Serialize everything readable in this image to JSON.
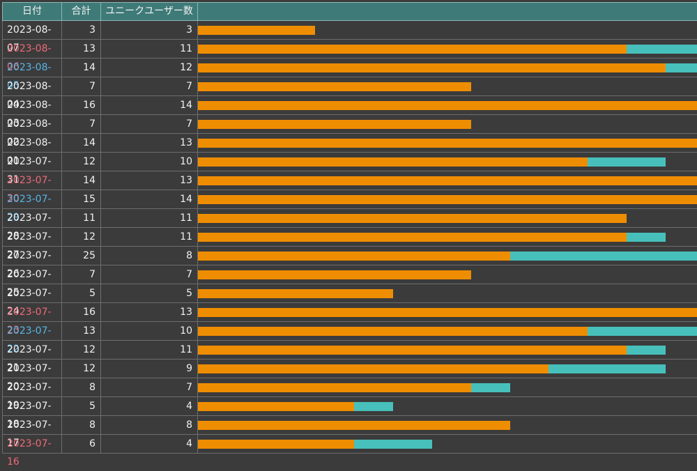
{
  "colors": {
    "header_bg": "#3e7a78",
    "row_bg": "#3b3b3b",
    "unique_bar": "#ef8d00",
    "total_bar": "#47c0bb",
    "sunday_text": "#ee6a78",
    "saturday_text": "#56b6e8"
  },
  "header": {
    "date": "日付",
    "total": "合計",
    "unique": "ユニークユーザー数"
  },
  "chart_data": {
    "type": "table",
    "bar_full_scale": 12.8,
    "columns": [
      "日付",
      "合計",
      "ユニークユーザー数"
    ],
    "rows": [
      {
        "date": "2023-08-07",
        "total": 3,
        "unique": 3,
        "day": "weekday"
      },
      {
        "date": "2023-08-06",
        "total": 13,
        "unique": 11,
        "day": "sun"
      },
      {
        "date": "2023-08-05",
        "total": 14,
        "unique": 12,
        "day": "sat"
      },
      {
        "date": "2023-08-04",
        "total": 7,
        "unique": 7,
        "day": "weekday"
      },
      {
        "date": "2023-08-03",
        "total": 16,
        "unique": 14,
        "day": "weekday"
      },
      {
        "date": "2023-08-02",
        "total": 7,
        "unique": 7,
        "day": "weekday"
      },
      {
        "date": "2023-08-01",
        "total": 14,
        "unique": 13,
        "day": "weekday"
      },
      {
        "date": "2023-07-31",
        "total": 12,
        "unique": 10,
        "day": "weekday"
      },
      {
        "date": "2023-07-30",
        "total": 14,
        "unique": 13,
        "day": "sun"
      },
      {
        "date": "2023-07-29",
        "total": 15,
        "unique": 14,
        "day": "sat"
      },
      {
        "date": "2023-07-28",
        "total": 11,
        "unique": 11,
        "day": "weekday"
      },
      {
        "date": "2023-07-27",
        "total": 12,
        "unique": 11,
        "day": "weekday"
      },
      {
        "date": "2023-07-26",
        "total": 25,
        "unique": 8,
        "day": "weekday"
      },
      {
        "date": "2023-07-25",
        "total": 7,
        "unique": 7,
        "day": "weekday"
      },
      {
        "date": "2023-07-24",
        "total": 5,
        "unique": 5,
        "day": "weekday"
      },
      {
        "date": "2023-07-23",
        "total": 16,
        "unique": 13,
        "day": "sun"
      },
      {
        "date": "2023-07-22",
        "total": 13,
        "unique": 10,
        "day": "sat"
      },
      {
        "date": "2023-07-21",
        "total": 12,
        "unique": 11,
        "day": "weekday"
      },
      {
        "date": "2023-07-20",
        "total": 12,
        "unique": 9,
        "day": "weekday"
      },
      {
        "date": "2023-07-19",
        "total": 8,
        "unique": 7,
        "day": "weekday"
      },
      {
        "date": "2023-07-18",
        "total": 5,
        "unique": 4,
        "day": "weekday"
      },
      {
        "date": "2023-07-17",
        "total": 8,
        "unique": 8,
        "day": "weekday"
      },
      {
        "date": "2023-07-16",
        "total": 6,
        "unique": 4,
        "day": "sun"
      }
    ]
  }
}
